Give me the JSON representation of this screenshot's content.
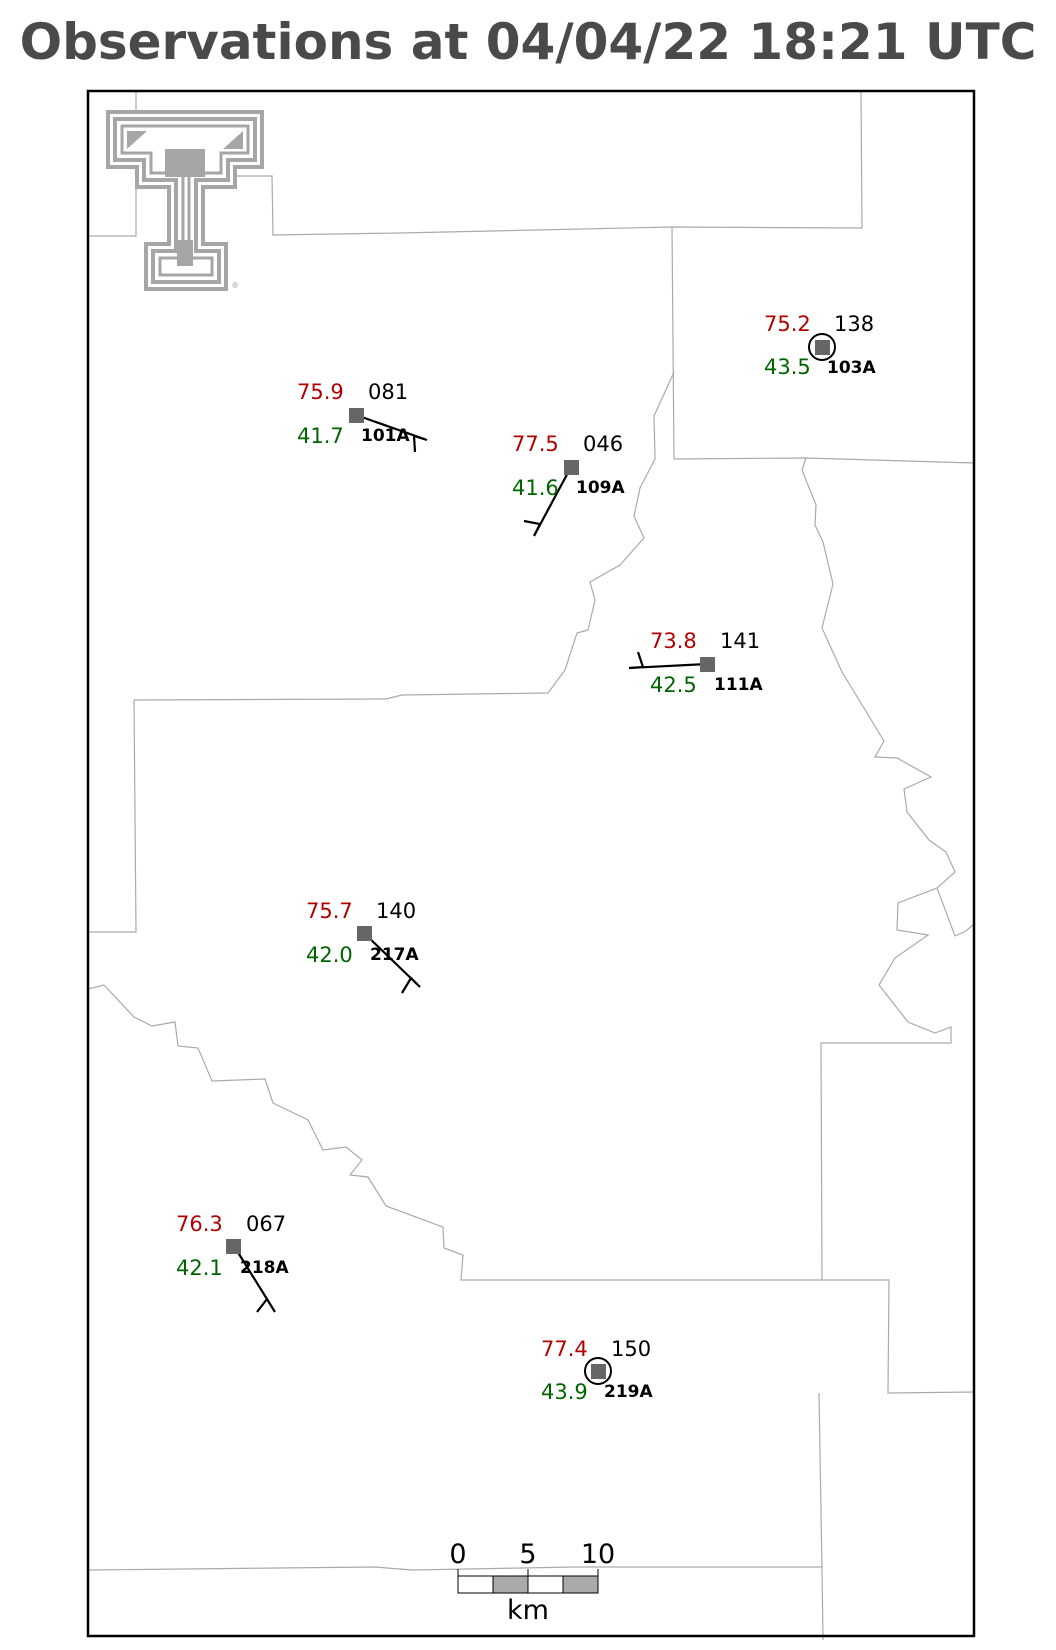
{
  "title": "Observations at 04/04/22 18:21 UTC",
  "colors": {
    "title": "#4a4a4a",
    "temperature": "#b30000",
    "dewpoint": "#006400",
    "station_marker": "#666666",
    "county_lines": "#aaaaaa",
    "logo": "#a6a6a6"
  },
  "logo": {
    "name": "texas-tech-double-t-logo",
    "registered_mark": "®"
  },
  "stations": [
    {
      "id": "101A",
      "temperature": "75.9",
      "dewpoint": "41.7",
      "pressure": "081",
      "sky_circle": false,
      "wind_barb": true
    },
    {
      "id": "109A",
      "temperature": "77.5",
      "dewpoint": "41.6",
      "pressure": "046",
      "sky_circle": false,
      "wind_barb": true
    },
    {
      "id": "103A",
      "temperature": "75.2",
      "dewpoint": "43.5",
      "pressure": "138",
      "sky_circle": true,
      "wind_barb": false
    },
    {
      "id": "111A",
      "temperature": "73.8",
      "dewpoint": "42.5",
      "pressure": "141",
      "sky_circle": false,
      "wind_barb": true
    },
    {
      "id": "217A",
      "temperature": "75.7",
      "dewpoint": "42.0",
      "pressure": "140",
      "sky_circle": false,
      "wind_barb": true
    },
    {
      "id": "218A",
      "temperature": "76.3",
      "dewpoint": "42.1",
      "pressure": "067",
      "sky_circle": false,
      "wind_barb": true
    },
    {
      "id": "219A",
      "temperature": "77.4",
      "dewpoint": "43.9",
      "pressure": "150",
      "sky_circle": true,
      "wind_barb": false
    }
  ],
  "scale_bar": {
    "ticks": [
      "0",
      "5",
      "10"
    ],
    "unit": "km"
  }
}
